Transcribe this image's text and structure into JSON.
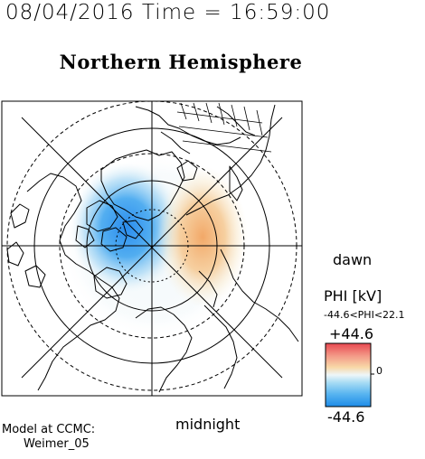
{
  "header": {
    "datetime": "08/04/2016 Time = 16:59:00",
    "title": "Northern Hemisphere"
  },
  "map": {
    "projection": "polar-stereographic-north-pole",
    "grid": "latitude rings and longitude meridians",
    "coastline_color": "#000000",
    "potential_cells": [
      {
        "name": "dusk-cell",
        "sign": "negative",
        "color": "#2f8ff0"
      },
      {
        "name": "dawn-cell",
        "sign": "positive",
        "color": "#f0b070"
      }
    ]
  },
  "labels": {
    "dawn": "dawn",
    "midnight": "midnight",
    "model_line1": "Model at CCMC:",
    "model_line2": "Weimer_05"
  },
  "colorbar": {
    "title": "PHI [kV]",
    "range": "-44.6<PHI<22.1",
    "max_label": "+44.6",
    "zero_label": "0",
    "min_label": "-44.6",
    "colors": [
      "#1f8ee8",
      "#6cc4f2",
      "#e6f2f6",
      "#f8d0a0",
      "#e84850"
    ]
  }
}
